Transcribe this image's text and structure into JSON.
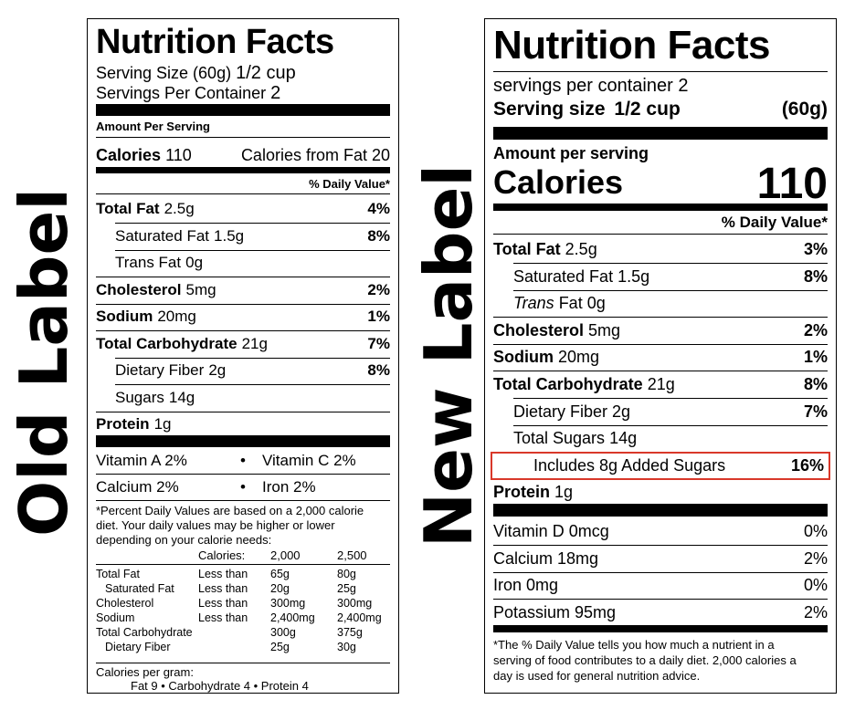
{
  "side_labels": {
    "old": "Old Label",
    "new": "New Label"
  },
  "old_label": {
    "title": "Nutrition Facts",
    "serving_size_label": "Serving Size (60g)",
    "serving_size_value": "1/2 cup",
    "servings_label": "Servings Per Container",
    "servings_value": "2",
    "amount_per_serving": "Amount Per Serving",
    "calories_label": "Calories",
    "calories_value": "110",
    "calories_from_fat": "Calories from Fat 20",
    "dv_header": "% Daily Value*",
    "nutrients": [
      {
        "name": "Total Fat",
        "amount": "2.5g",
        "dv": "4%"
      },
      {
        "name": "Saturated Fat",
        "amount": "1.5g",
        "dv": "8%"
      },
      {
        "name": "Trans Fat",
        "amount": "0g",
        "dv": ""
      },
      {
        "name": "Cholesterol",
        "amount": "5mg",
        "dv": "2%"
      },
      {
        "name": "Sodium",
        "amount": "20mg",
        "dv": "1%"
      },
      {
        "name": "Total Carbohydrate",
        "amount": "21g",
        "dv": "7%"
      },
      {
        "name": "Dietary Fiber",
        "amount": "2g",
        "dv": "8%"
      },
      {
        "name": "Sugars",
        "amount": "14g",
        "dv": ""
      },
      {
        "name": "Protein",
        "amount": "1g",
        "dv": ""
      }
    ],
    "vitamins": [
      {
        "left": "Vitamin A 2%",
        "right": "Vitamin C 2%"
      },
      {
        "left": "Calcium 2%",
        "right": "Iron 2%"
      }
    ],
    "bullet": "•",
    "footnote": [
      "*Percent Daily Values are based on a 2,000 calorie",
      "diet. Your daily values may be higher or lower",
      "depending on your calorie needs:"
    ],
    "table_header": {
      "label": "Calories:",
      "col1": "2,000",
      "col2": "2,500"
    },
    "table_rows": [
      {
        "name": "Total Fat",
        "cond": "Less than",
        "c1": "65g",
        "c2": "80g"
      },
      {
        "name": "Saturated Fat",
        "cond": "Less than",
        "c1": "20g",
        "c2": "25g"
      },
      {
        "name": "Cholesterol",
        "cond": "Less than",
        "c1": "300mg",
        "c2": "300mg"
      },
      {
        "name": "Sodium",
        "cond": "Less than",
        "c1": "2,400mg",
        "c2": "2,400mg"
      },
      {
        "name": "Total Carbohydrate",
        "cond": "",
        "c1": "300g",
        "c2": "375g"
      },
      {
        "name": "Dietary Fiber",
        "cond": "",
        "c1": "25g",
        "c2": "30g"
      }
    ],
    "cal_per_gram_label": "Calories per gram:",
    "cal_per_gram_values": "Fat 9   •   Carbohydrate 4   •   Protein 4"
  },
  "new_label": {
    "title": "Nutrition Facts",
    "servings_text": "servings per container 2",
    "serving_size_label": "Serving size",
    "serving_size_value": "1/2 cup",
    "serving_size_grams": "(60g)",
    "amount_per_serving": "Amount per serving",
    "calories_label": "Calories",
    "calories_value": "110",
    "dv_header": "% Daily Value*",
    "nutrients": [
      {
        "name": "Total Fat",
        "amount": "2.5g",
        "dv": "3%"
      },
      {
        "name": "Saturated Fat",
        "amount": "1.5g",
        "dv": "8%"
      },
      {
        "name": "Trans",
        "amount": "Fat 0g",
        "dv": ""
      },
      {
        "name": "Cholesterol",
        "amount": "5mg",
        "dv": "2%"
      },
      {
        "name": "Sodium",
        "amount": "20mg",
        "dv": "1%"
      },
      {
        "name": "Total Carbohydrate",
        "amount": "21g",
        "dv": "8%"
      },
      {
        "name": "Dietary Fiber",
        "amount": "2g",
        "dv": "7%"
      },
      {
        "name": "Total Sugars",
        "amount": "14g",
        "dv": ""
      },
      {
        "name": "Includes 8g Added Sugars",
        "amount": "",
        "dv": "16%"
      },
      {
        "name": "Protein",
        "amount": "1g",
        "dv": ""
      }
    ],
    "vitamins": [
      {
        "name": "Vitamin D 0mcg",
        "dv": "0%"
      },
      {
        "name": "Calcium 18mg",
        "dv": "2%"
      },
      {
        "name": "Iron 0mg",
        "dv": "0%"
      },
      {
        "name": "Potassium 95mg",
        "dv": "2%"
      }
    ],
    "footnote": [
      "*The % Daily Value tells you how much a nutrient in a",
      "serving of food contributes to a daily diet. 2,000 calories a",
      "day is used for general nutrition advice."
    ],
    "highlight_color": "#d9382a"
  }
}
